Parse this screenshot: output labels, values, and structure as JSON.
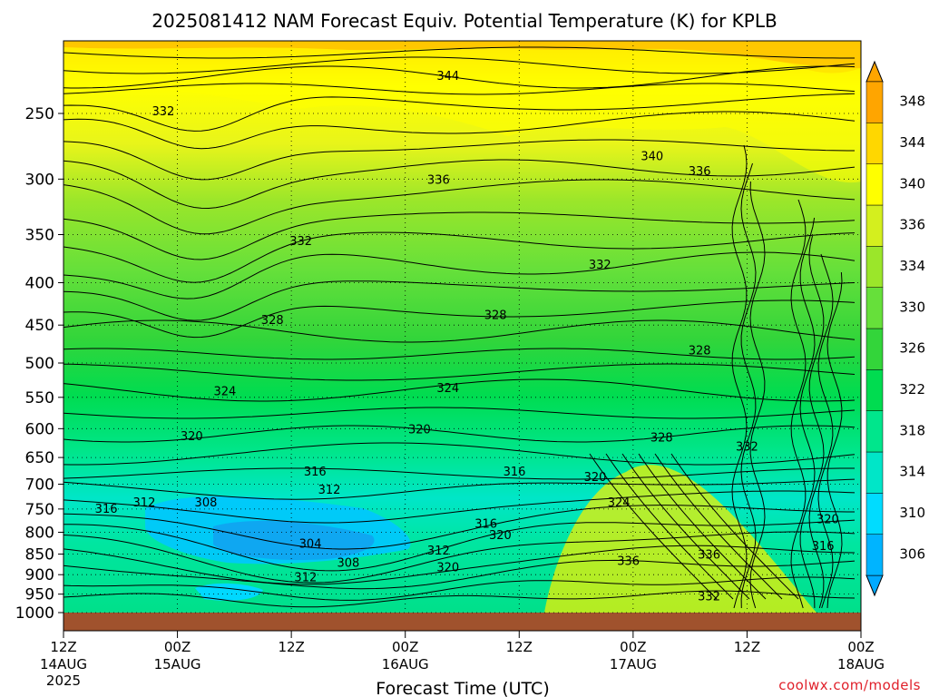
{
  "title": "2025081412 NAM Forecast Equiv. Potential Temperature (K) for KPLB",
  "credit": "coolwx.com/models",
  "chart_data": {
    "type": "heatmap",
    "title": "2025081412 NAM Forecast Equiv. Potential Temperature (K) for KPLB",
    "xlabel": "Forecast Time (UTC)",
    "ylabel": "",
    "y_scale": "log-pressure (hPa), decreasing upward",
    "ylim": [
      1000,
      200
    ],
    "grid": true,
    "x_ticks": [
      {
        "t": 0,
        "line1": "12Z",
        "line2": "14AUG",
        "line3": "2025"
      },
      {
        "t": 12,
        "line1": "00Z",
        "line2": "15AUG",
        "line3": ""
      },
      {
        "t": 24,
        "line1": "12Z",
        "line2": "",
        "line3": ""
      },
      {
        "t": 36,
        "line1": "00Z",
        "line2": "16AUG",
        "line3": ""
      },
      {
        "t": 48,
        "line1": "12Z",
        "line2": "",
        "line3": ""
      },
      {
        "t": 60,
        "line1": "00Z",
        "line2": "17AUG",
        "line3": ""
      },
      {
        "t": 72,
        "line1": "12Z",
        "line2": "",
        "line3": ""
      },
      {
        "t": 84,
        "line1": "00Z",
        "line2": "18AUG",
        "line3": ""
      }
    ],
    "y_ticks": [
      250,
      300,
      350,
      400,
      450,
      500,
      550,
      600,
      650,
      700,
      750,
      800,
      850,
      900,
      950,
      1000
    ],
    "colorbar": {
      "labels": [
        306,
        310,
        314,
        318,
        322,
        326,
        330,
        334,
        336,
        340,
        344,
        348
      ],
      "colors": [
        "#00b4ff",
        "#00dcff",
        "#00e6c8",
        "#00e68c",
        "#00dc50",
        "#33d53a",
        "#66e03a",
        "#9be62a",
        "#d4ef1e",
        "#ffff00",
        "#ffd700",
        "#ffa500"
      ],
      "extend": "both"
    },
    "contour_labels": [
      {
        "t": 40.5,
        "p": 225,
        "v": "344"
      },
      {
        "t": 10.5,
        "p": 248,
        "v": "332"
      },
      {
        "t": 62,
        "p": 281,
        "v": "340"
      },
      {
        "t": 67,
        "p": 293,
        "v": "336"
      },
      {
        "t": 39.5,
        "p": 300,
        "v": "336"
      },
      {
        "t": 25,
        "p": 356,
        "v": "332"
      },
      {
        "t": 56.5,
        "p": 380,
        "v": "332"
      },
      {
        "t": 22,
        "p": 443,
        "v": "328"
      },
      {
        "t": 45.5,
        "p": 437,
        "v": "328"
      },
      {
        "t": 67,
        "p": 482,
        "v": "328"
      },
      {
        "t": 17,
        "p": 540,
        "v": "324"
      },
      {
        "t": 40.5,
        "p": 535,
        "v": "324"
      },
      {
        "t": 13.5,
        "p": 612,
        "v": "320"
      },
      {
        "t": 37.5,
        "p": 600,
        "v": "320"
      },
      {
        "t": 63,
        "p": 614,
        "v": "328"
      },
      {
        "t": 72,
        "p": 630,
        "v": "332"
      },
      {
        "t": 26.5,
        "p": 675,
        "v": "316"
      },
      {
        "t": 47.5,
        "p": 675,
        "v": "316"
      },
      {
        "t": 28,
        "p": 710,
        "v": "312"
      },
      {
        "t": 56,
        "p": 685,
        "v": "320"
      },
      {
        "t": 58.5,
        "p": 735,
        "v": "324"
      },
      {
        "t": 4.5,
        "p": 748,
        "v": "316"
      },
      {
        "t": 8.5,
        "p": 735,
        "v": "312"
      },
      {
        "t": 15,
        "p": 735,
        "v": "308"
      },
      {
        "t": 26,
        "p": 825,
        "v": "304"
      },
      {
        "t": 30,
        "p": 870,
        "v": "308"
      },
      {
        "t": 39.5,
        "p": 840,
        "v": "312"
      },
      {
        "t": 44.5,
        "p": 780,
        "v": "316"
      },
      {
        "t": 46,
        "p": 805,
        "v": "320"
      },
      {
        "t": 40.5,
        "p": 880,
        "v": "320"
      },
      {
        "t": 25.5,
        "p": 905,
        "v": "312"
      },
      {
        "t": 59.5,
        "p": 865,
        "v": "336"
      },
      {
        "t": 68,
        "p": 850,
        "v": "336"
      },
      {
        "t": 68,
        "p": 955,
        "v": "332"
      },
      {
        "t": 80.5,
        "p": 770,
        "v": "320"
      },
      {
        "t": 80,
        "p": 830,
        "v": "316"
      }
    ],
    "surface_band": true
  }
}
